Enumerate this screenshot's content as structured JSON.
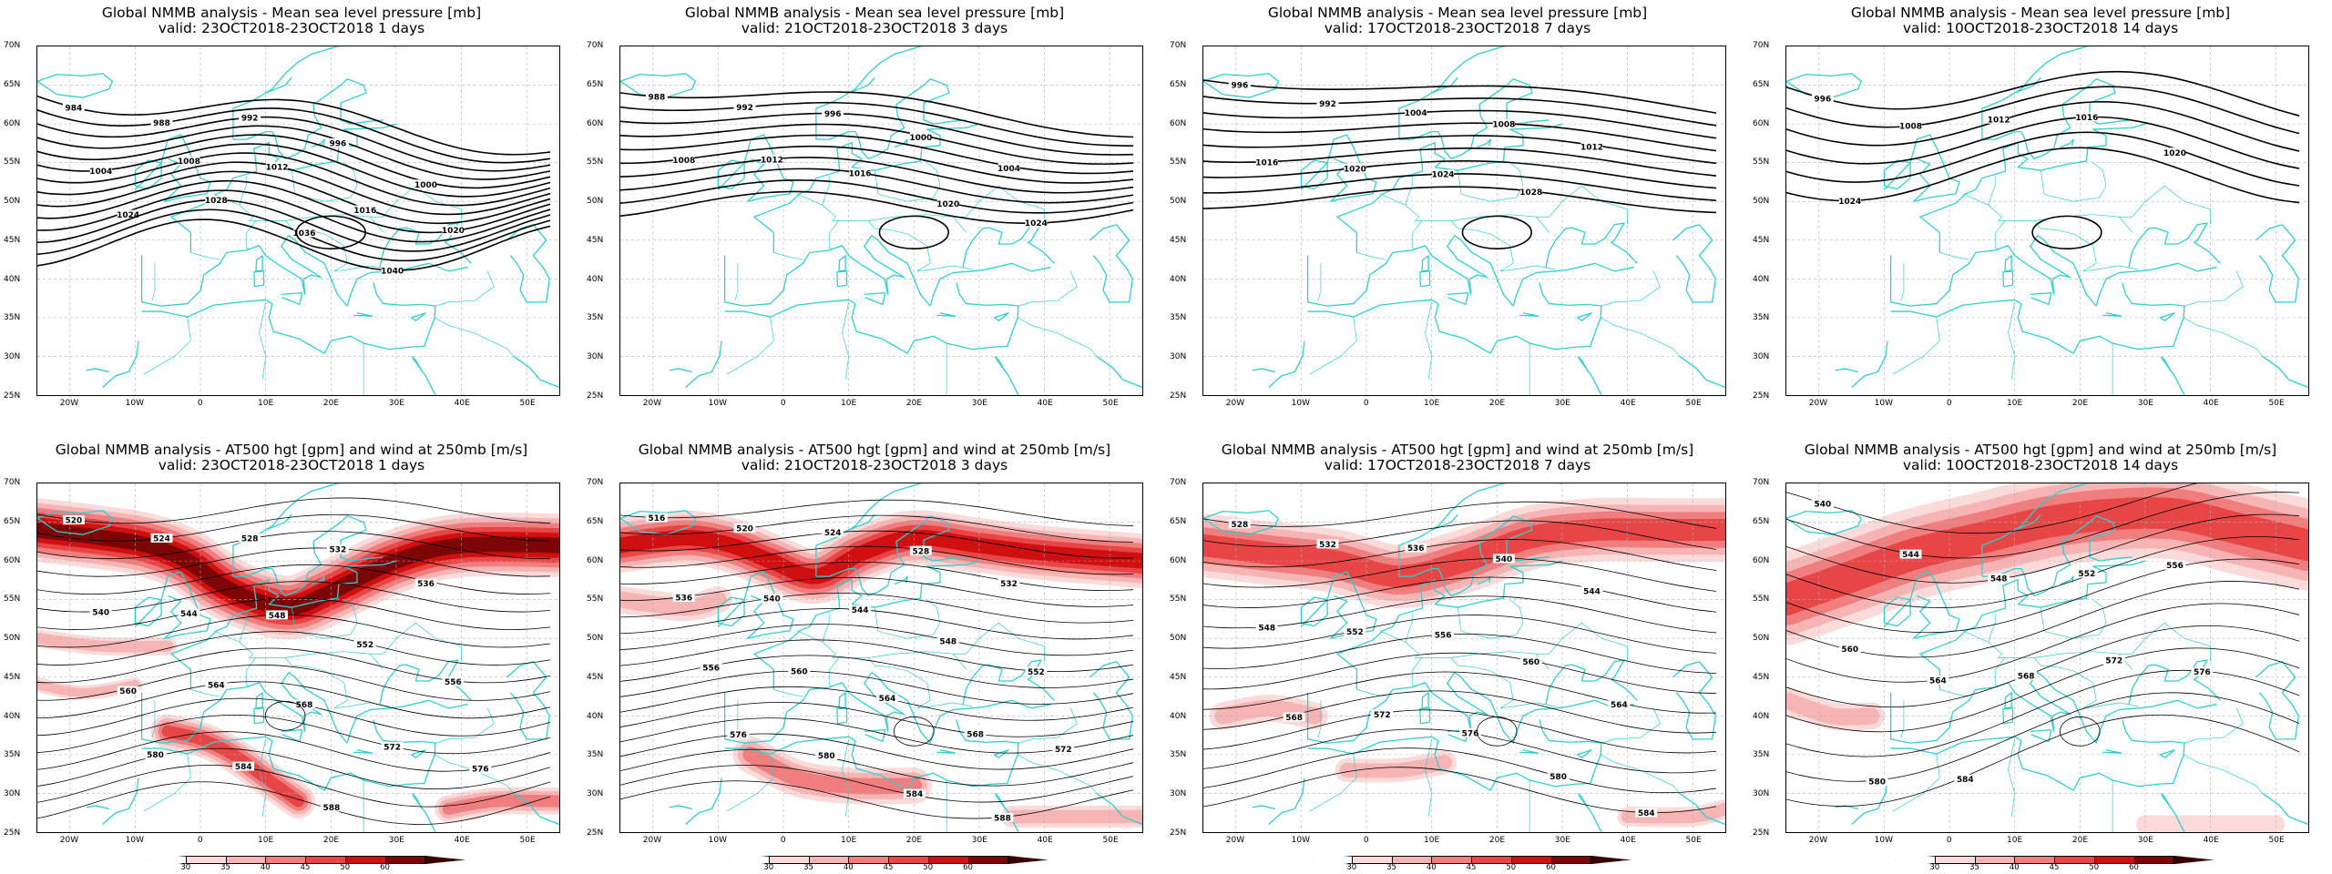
{
  "colors": {
    "coast": "#2ecfd0",
    "isobar": "#000000",
    "grid": "#b0b0b0",
    "wind_30": "#fbdada",
    "wind_35": "#f7b4b4",
    "wind_40": "#f07e7e",
    "wind_45": "#e84646",
    "wind_50": "#d01010",
    "wind_60": "#7d0505"
  },
  "axes": {
    "lat_labels": [
      "70N",
      "65N",
      "60N",
      "55N",
      "50N",
      "45N",
      "40N",
      "35N",
      "30N",
      "25N"
    ],
    "lon_labels": [
      "20W",
      "10W",
      "0",
      "10E",
      "20E",
      "30E",
      "40E",
      "50E"
    ]
  },
  "colorbar": {
    "ticks": [
      "30",
      "35",
      "40",
      "45",
      "50",
      "60"
    ]
  },
  "rows": [
    {
      "name": "mslp",
      "panels": [
        {
          "title1": "Global NMMB analysis - Mean sea level pressure [mb]",
          "title2": "valid: 23OCT2018-23OCT2018  1 days"
        },
        {
          "title1": "Global NMMB analysis - Mean sea level pressure [mb]",
          "title2": "valid: 21OCT2018-23OCT2018  3 days"
        },
        {
          "title1": "Global NMMB analysis - Mean sea level pressure [mb]",
          "title2": "valid: 17OCT2018-23OCT2018  7 days"
        },
        {
          "title1": "Global NMMB analysis - Mean sea level pressure [mb]",
          "title2": "valid: 10OCT2018-23OCT2018  14 days"
        }
      ]
    },
    {
      "name": "z500",
      "panels": [
        {
          "title1": "Global NMMB analysis - AT500 hgt [gpm] and wind at 250mb [m/s]",
          "title2": "valid: 23OCT2018-23OCT2018  1 days"
        },
        {
          "title1": "Global NMMB analysis - AT500 hgt [gpm] and wind at 250mb [m/s]",
          "title2": "valid: 21OCT2018-23OCT2018  3 days"
        },
        {
          "title1": "Global NMMB analysis - AT500 hgt [gpm] and wind at 250mb [m/s]",
          "title2": "valid: 17OCT2018-23OCT2018  7 days"
        },
        {
          "title1": "Global NMMB analysis - AT500 hgt [gpm] and wind at 250mb [m/s]",
          "title2": "valid: 10OCT2018-23OCT2018  14 days"
        }
      ]
    }
  ],
  "contour_labels": {
    "mslp": [
      [
        "1040",
        "1036",
        "1028",
        "1024",
        "1020",
        "1016",
        "1012",
        "1008",
        "1004",
        "1000",
        "996",
        "992",
        "988",
        "984"
      ],
      [
        "1024",
        "1020",
        "1016",
        "1012",
        "1008",
        "1004",
        "1000",
        "996",
        "992",
        "988"
      ],
      [
        "1028",
        "1024",
        "1020",
        "1016",
        "1012",
        "1008",
        "1004",
        "992",
        "996"
      ],
      [
        "1024",
        "1020",
        "1016",
        "1012",
        "1008",
        "996"
      ]
    ],
    "z500": [
      [
        "588",
        "584",
        "580",
        "576",
        "572",
        "568",
        "564",
        "560",
        "556",
        "552",
        "548",
        "544",
        "540",
        "536",
        "532",
        "528",
        "524",
        "520"
      ],
      [
        "588",
        "584",
        "580",
        "576",
        "572",
        "568",
        "564",
        "560",
        "556",
        "552",
        "548",
        "544",
        "540",
        "536",
        "532",
        "528",
        "524",
        "520",
        "516"
      ],
      [
        "584",
        "580",
        "576",
        "572",
        "568",
        "564",
        "560",
        "556",
        "552",
        "548",
        "544",
        "540",
        "536",
        "532",
        "528"
      ],
      [
        "584",
        "580",
        "576",
        "572",
        "568",
        "564",
        "560",
        "556",
        "552",
        "548",
        "544",
        "540"
      ]
    ]
  }
}
